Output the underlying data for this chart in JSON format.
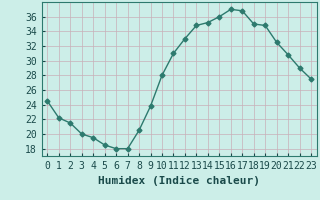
{
  "x": [
    0,
    1,
    2,
    3,
    4,
    5,
    6,
    7,
    8,
    9,
    10,
    11,
    12,
    13,
    14,
    15,
    16,
    17,
    18,
    19,
    20,
    21,
    22,
    23
  ],
  "y": [
    24.5,
    22.2,
    21.5,
    20.0,
    19.5,
    18.5,
    18.0,
    18.0,
    20.5,
    23.8,
    28.0,
    31.0,
    33.0,
    34.8,
    35.2,
    36.0,
    37.0,
    36.8,
    35.0,
    34.8,
    32.5,
    30.8,
    29.0,
    27.5
  ],
  "line_color": "#2d7a6e",
  "marker": "D",
  "markersize": 2.5,
  "linewidth": 1.0,
  "bg_color": "#cceee8",
  "grid_color": "#c8b0b8",
  "xlabel": "Humidex (Indice chaleur)",
  "ylim": [
    17,
    38
  ],
  "yticks": [
    18,
    20,
    22,
    24,
    26,
    28,
    30,
    32,
    34,
    36
  ],
  "xticks": [
    0,
    1,
    2,
    3,
    4,
    5,
    6,
    7,
    8,
    9,
    10,
    11,
    12,
    13,
    14,
    15,
    16,
    17,
    18,
    19,
    20,
    21,
    22,
    23
  ],
  "tick_labelsize": 7,
  "xlabel_fontsize": 8
}
